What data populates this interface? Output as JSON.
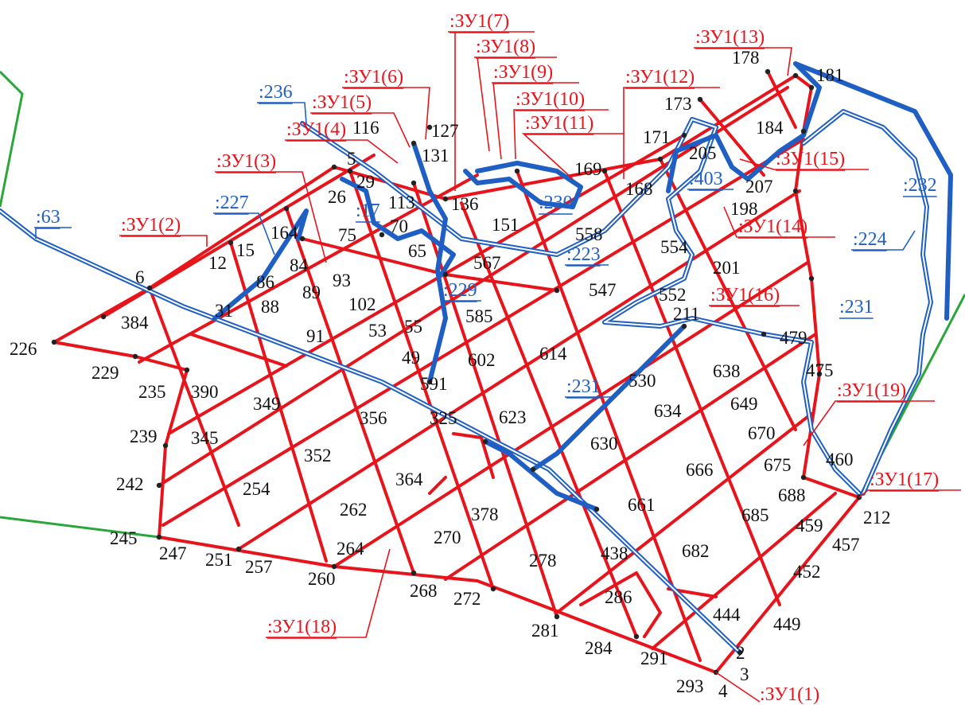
{
  "colors": {
    "zu_boundary": "#e8141c",
    "cadastral_boundary": "#1f5fc4",
    "territory_boundary": "#2aa63a",
    "point": "#222222"
  },
  "zu_labels": [
    ":ЗУ1(1)",
    ":ЗУ1(2)",
    ":ЗУ1(3)",
    ":ЗУ1(4)",
    ":ЗУ1(5)",
    ":ЗУ1(6)",
    ":ЗУ1(7)",
    ":ЗУ1(8)",
    ":ЗУ1(9)",
    ":ЗУ1(10)",
    ":ЗУ1(11)",
    ":ЗУ1(12)",
    ":ЗУ1(13)",
    ":ЗУ1(14)",
    ":ЗУ1(15)",
    ":ЗУ1(16)",
    ":ЗУ1(17)",
    ":ЗУ1(18)",
    ":ЗУ1(19)"
  ],
  "cad_labels": [
    ":63",
    ":227",
    ":17",
    ":236",
    ":229",
    ":230",
    ":223",
    ":403",
    ":232",
    ":224",
    ":231",
    ":231"
  ],
  "point_labels": [
    "2",
    "3",
    "4",
    "5",
    "6",
    "12",
    "15",
    "26",
    "29",
    "31",
    "49",
    "53",
    "55",
    "65",
    "70",
    "75",
    "84",
    "86",
    "88",
    "89",
    "91",
    "93",
    "102",
    "113",
    "116",
    "127",
    "131",
    "136",
    "151",
    "164",
    "168",
    "169",
    "171",
    "173",
    "178",
    "181",
    "184",
    "198",
    "201",
    "205",
    "207",
    "211",
    "212",
    "226",
    "229",
    "235",
    "239",
    "242",
    "245",
    "247",
    "251",
    "254",
    "257",
    "260",
    "262",
    "264",
    "268",
    "270",
    "272",
    "278",
    "281",
    "284",
    "286",
    "291",
    "293",
    "325",
    "345",
    "349",
    "352",
    "356",
    "364",
    "378",
    "384",
    "390",
    "438",
    "444",
    "449",
    "452",
    "457",
    "459",
    "460",
    "475",
    "479",
    "530",
    "547",
    "552",
    "554",
    "558",
    "567",
    "585",
    "591",
    "602",
    "614",
    "623",
    "630",
    "634",
    "638",
    "649",
    "661",
    "666",
    "670",
    "675",
    "682",
    "685",
    "688"
  ]
}
